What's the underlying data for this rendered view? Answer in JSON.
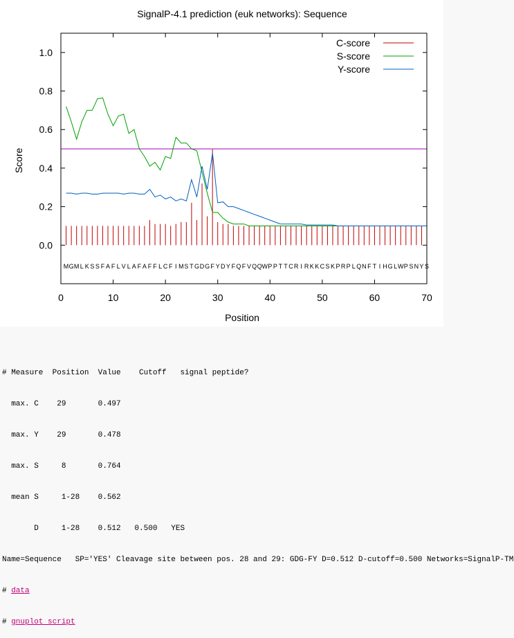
{
  "chart_data": {
    "type": "line",
    "title": "SignalP-4.1 prediction (euk networks): Sequence",
    "xlabel": "Position",
    "ylabel": "Score",
    "xlim": [
      0,
      70
    ],
    "ylim": [
      -0.2,
      1.1
    ],
    "xticks": [
      "0",
      "10",
      "20",
      "30",
      "40",
      "50",
      "60",
      "70"
    ],
    "yticks": [
      "0.0",
      "0.2",
      "0.4",
      "0.6",
      "0.8",
      "1.0"
    ],
    "legend_position": "top-right",
    "sequence": [
      "M",
      "G",
      "M",
      "L",
      "K",
      "S",
      "S",
      "F",
      "A",
      "F",
      "L",
      "V",
      "L",
      "A",
      "F",
      "A",
      "F",
      "F",
      "L",
      "C",
      "F",
      "I",
      "M",
      "S",
      "T",
      "G",
      "D",
      "G",
      "F",
      "Y",
      "D",
      "Y",
      "F",
      "Q",
      "F",
      "V",
      "Q",
      "Q",
      "W",
      "P",
      "P",
      "T",
      "T",
      "C",
      "R",
      "I",
      "R",
      "K",
      "K",
      "C",
      "S",
      "K",
      "P",
      "R",
      "P",
      "L",
      "Q",
      "N",
      "F",
      "T",
      "I",
      "H",
      "G",
      "L",
      "W",
      "P",
      "S",
      "N",
      "Y",
      "S"
    ],
    "cutoff": 0.5,
    "cutoff_color": "#a000c0",
    "series": [
      {
        "name": "C-score",
        "color": "#c00000",
        "style": "impulses",
        "values": [
          0.1,
          0.1,
          0.1,
          0.1,
          0.1,
          0.1,
          0.1,
          0.1,
          0.1,
          0.1,
          0.1,
          0.1,
          0.1,
          0.1,
          0.1,
          0.1,
          0.13,
          0.11,
          0.11,
          0.11,
          0.1,
          0.11,
          0.12,
          0.12,
          0.22,
          0.13,
          0.32,
          0.15,
          0.497,
          0.12,
          0.11,
          0.11,
          0.1,
          0.1,
          0.1,
          0.1,
          0.1,
          0.1,
          0.1,
          0.1,
          0.1,
          0.1,
          0.1,
          0.1,
          0.1,
          0.1,
          0.1,
          0.1,
          0.1,
          0.1,
          0.1,
          0.1,
          0.1,
          0.1,
          0.1,
          0.1,
          0.1,
          0.1,
          0.1,
          0.1,
          0.1,
          0.1,
          0.1,
          0.1,
          0.1,
          0.1,
          0.1,
          0.1,
          0.1,
          0.1
        ]
      },
      {
        "name": "S-score",
        "color": "#00a000",
        "style": "line",
        "values": [
          0.72,
          0.64,
          0.55,
          0.64,
          0.7,
          0.7,
          0.76,
          0.764,
          0.68,
          0.62,
          0.67,
          0.68,
          0.58,
          0.6,
          0.5,
          0.46,
          0.41,
          0.43,
          0.39,
          0.46,
          0.45,
          0.56,
          0.53,
          0.53,
          0.5,
          0.49,
          0.38,
          0.27,
          0.17,
          0.17,
          0.14,
          0.12,
          0.11,
          0.11,
          0.11,
          0.1,
          0.1,
          0.1,
          0.1,
          0.1,
          0.1,
          0.1,
          0.1,
          0.1,
          0.1,
          0.1,
          0.1,
          0.1,
          0.1,
          0.1,
          0.1,
          0.1,
          0.1,
          0.1,
          0.1,
          0.1,
          0.1,
          0.1,
          0.1,
          0.1,
          0.1,
          0.1,
          0.1,
          0.1,
          0.1,
          0.1,
          0.1,
          0.1,
          0.1,
          0.1
        ]
      },
      {
        "name": "Y-score",
        "color": "#0060c0",
        "style": "line",
        "values": [
          0.27,
          0.27,
          0.265,
          0.27,
          0.27,
          0.265,
          0.265,
          0.27,
          0.27,
          0.27,
          0.27,
          0.265,
          0.27,
          0.27,
          0.265,
          0.265,
          0.29,
          0.25,
          0.26,
          0.24,
          0.25,
          0.23,
          0.24,
          0.23,
          0.34,
          0.25,
          0.41,
          0.29,
          0.478,
          0.22,
          0.225,
          0.2,
          0.2,
          0.19,
          0.18,
          0.17,
          0.16,
          0.15,
          0.14,
          0.13,
          0.12,
          0.11,
          0.11,
          0.11,
          0.11,
          0.11,
          0.105,
          0.105,
          0.105,
          0.105,
          0.105,
          0.105,
          0.1,
          0.1,
          0.1,
          0.1,
          0.1,
          0.1,
          0.1,
          0.1,
          0.1,
          0.1,
          0.1,
          0.1,
          0.1,
          0.1,
          0.1,
          0.1,
          0.1,
          0.1
        ]
      }
    ]
  },
  "results": {
    "header": "# Measure  Position  Value    Cutoff   signal peptide?",
    "rows": [
      "  max. C    29       0.497",
      "  max. Y    29       0.478",
      "  max. S     8       0.764",
      "  mean S     1-28    0.562",
      "       D     1-28    0.512   0.500   YES"
    ],
    "summary": "Name=Sequence   SP='YES' Cleavage site between pos. 28 and 29: GDG-FY D=0.512 D-cutoff=0.500 Networks=SignalP-TM",
    "link_prefix": "# ",
    "data_link": "data",
    "script_link": "gnuplot script"
  }
}
